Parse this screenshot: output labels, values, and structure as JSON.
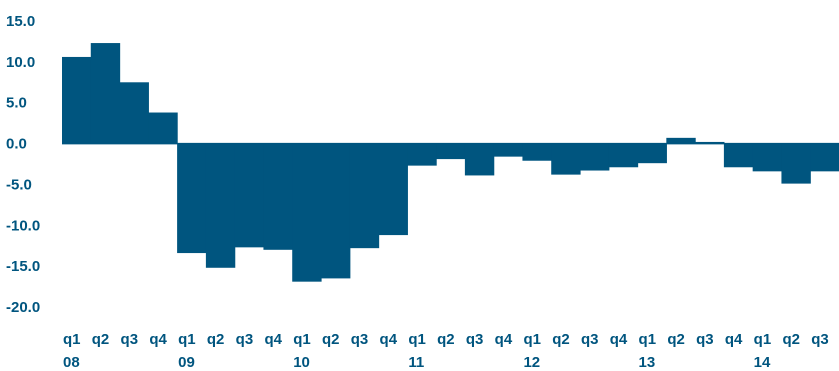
{
  "chart_data": {
    "type": "bar",
    "title": "",
    "xlabel": "",
    "ylabel": "",
    "bar_color": "#00557f",
    "label_color": "#00557f",
    "ylim": [
      -20,
      15
    ],
    "yticks": [
      "15.0",
      "10.0",
      "5.0",
      "0.0",
      "-5.0",
      "-10.0",
      "-15.0",
      "-20.0"
    ],
    "categories": [
      "q1 08",
      "q2 08",
      "q3 08",
      "q4 08",
      "q1 09",
      "q2 09",
      "q3 09",
      "q4 09",
      "q1 10",
      "q2 10",
      "q3 10",
      "q4 10",
      "q1 11",
      "q2 11",
      "q3 11",
      "q4 11",
      "q1 12",
      "q2 12",
      "q3 12",
      "q4 12",
      "q1 13",
      "q2 13",
      "q3 13",
      "q4 13",
      "q1 14",
      "q2 14",
      "q3 14"
    ],
    "quarter_labels": [
      "q1",
      "q2",
      "q3",
      "q4",
      "q1",
      "q2",
      "q3",
      "q4",
      "q1",
      "q2",
      "q3",
      "q4",
      "q1",
      "q2",
      "q3",
      "q4",
      "q1",
      "q2",
      "q3",
      "q4",
      "q1",
      "q2",
      "q3",
      "q4",
      "q1",
      "q2",
      "q3"
    ],
    "year_labels": [
      {
        "label": "08",
        "index": 0
      },
      {
        "label": "09",
        "index": 4
      },
      {
        "label": "10",
        "index": 8
      },
      {
        "label": "11",
        "index": 12
      },
      {
        "label": "12",
        "index": 16
      },
      {
        "label": "13",
        "index": 20
      },
      {
        "label": "14",
        "index": 24
      }
    ],
    "values": [
      10.6,
      12.3,
      7.5,
      3.8,
      -13.4,
      -15.2,
      -12.7,
      -13.0,
      -16.9,
      -16.5,
      -12.8,
      -11.2,
      -2.7,
      -1.9,
      -3.9,
      -1.6,
      -2.1,
      -3.8,
      -3.3,
      -2.9,
      -2.4,
      0.7,
      0.2,
      -2.9,
      -3.4,
      -4.9,
      -3.4
    ]
  }
}
